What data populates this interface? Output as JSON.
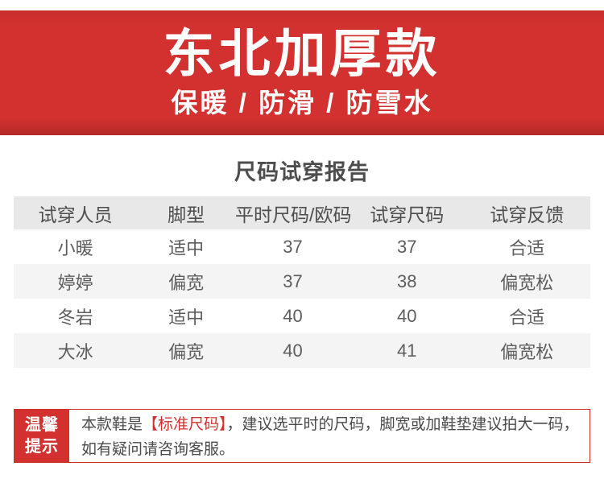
{
  "banner": {
    "title": "东北加厚款",
    "subtitle": "保暖 / 防滑 / 防雪水",
    "bg_color": "#d2312f",
    "text_color": "#ffffff"
  },
  "report": {
    "title": "尺码试穿报告",
    "table": {
      "header_bg": "#e8e8e8",
      "stripe_bg": "#f4f4f4",
      "headers": [
        "试穿人员",
        "脚型",
        "平时尺码/欧码",
        "试穿尺码",
        "试穿反馈"
      ],
      "rows": [
        [
          "小暖",
          "适中",
          "37",
          "37",
          "合适"
        ],
        [
          "婷婷",
          "偏宽",
          "37",
          "38",
          "偏宽松"
        ],
        [
          "冬岩",
          "适中",
          "40",
          "40",
          "合适"
        ],
        [
          "大冰",
          "偏宽",
          "40",
          "41",
          "偏宽松"
        ]
      ]
    }
  },
  "tips": {
    "label_line1": "温馨",
    "label_line2": "提示",
    "line1_prefix": "本款鞋是",
    "line1_highlight": "【标准尺码】",
    "line1_suffix": "，建议选平时的尺码，脚宽或加鞋垫建议拍大一码，",
    "line2": "如有疑问请咨询客服。",
    "accent_color": "#d2312f"
  }
}
